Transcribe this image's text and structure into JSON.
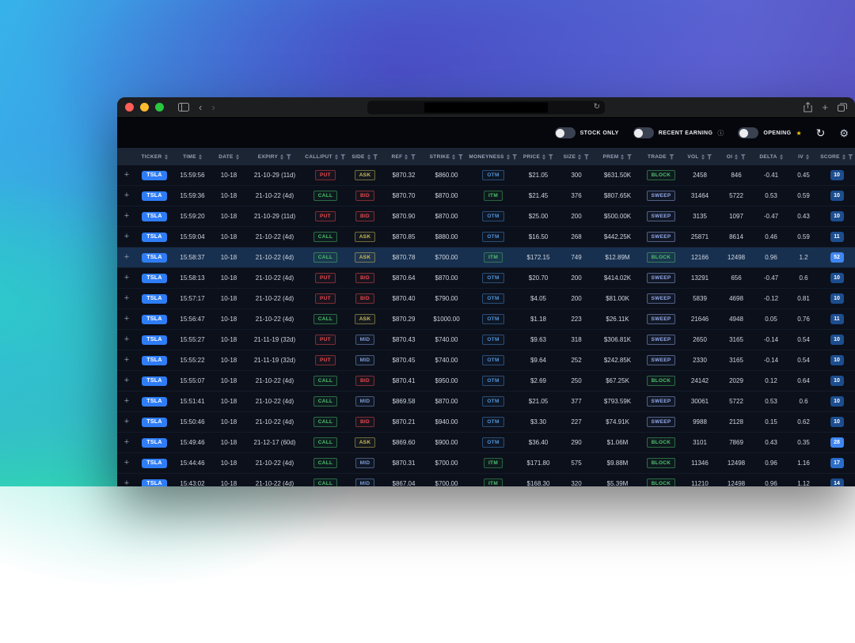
{
  "colors": {
    "accent_blue": "#2f7df6",
    "call_green": "#4cc06a",
    "put_red": "#e5484d",
    "ask_yellow": "#cdbb5a",
    "bid_red": "#e5484d",
    "mid_blue": "#7d9bd8",
    "otm_blue": "#4f93d6",
    "itm_green": "#4cc06a",
    "sweep_blue": "#93a7e8",
    "block_green": "#4cc06a",
    "score_low": "#1c4d8f",
    "score_mid": "#2a6cc9",
    "score_high": "#3f86f2",
    "row_highlight": "#18304f",
    "star_yellow": "#f5c518"
  },
  "icons": {
    "back": "‹",
    "forward": "›",
    "reload": "↻",
    "refresh": "↻",
    "new_tab": "+",
    "info": "ⓘ",
    "star": "★",
    "settings": "⚙",
    "expand": "+"
  },
  "controls": {
    "toggles": [
      {
        "label": "STOCK ONLY",
        "state": "off"
      },
      {
        "label": "RECENT EARNING",
        "state": "off",
        "info": true
      },
      {
        "label": "OPENING",
        "state": "off",
        "star": true
      }
    ]
  },
  "table": {
    "columns": [
      {
        "key": "ticker",
        "label": "TICKER",
        "sort": true,
        "filter": false
      },
      {
        "key": "time",
        "label": "TIME",
        "sort": true,
        "filter": false
      },
      {
        "key": "date",
        "label": "DATE",
        "sort": true,
        "filter": false
      },
      {
        "key": "expiry",
        "label": "EXPIRY",
        "sort": true,
        "filter": true
      },
      {
        "key": "callput",
        "label": "CALL/PUT",
        "sort": true,
        "filter": true
      },
      {
        "key": "side",
        "label": "SIDE",
        "sort": true,
        "filter": true
      },
      {
        "key": "ref",
        "label": "REF",
        "sort": true,
        "filter": true
      },
      {
        "key": "strike",
        "label": "STRIKE",
        "sort": true,
        "filter": true
      },
      {
        "key": "moneyness",
        "label": "MONEYNESS",
        "sort": true,
        "filter": true
      },
      {
        "key": "price",
        "label": "PRICE",
        "sort": true,
        "filter": true
      },
      {
        "key": "size",
        "label": "SIZE",
        "sort": true,
        "filter": true
      },
      {
        "key": "prem",
        "label": "PREM",
        "sort": true,
        "filter": true
      },
      {
        "key": "trade",
        "label": "TRADE",
        "sort": false,
        "filter": true
      },
      {
        "key": "vol",
        "label": "VOL",
        "sort": true,
        "filter": true
      },
      {
        "key": "oi",
        "label": "OI",
        "sort": true,
        "filter": true
      },
      {
        "key": "delta",
        "label": "DELTA",
        "sort": true,
        "filter": false
      },
      {
        "key": "iv",
        "label": "IV",
        "sort": true,
        "filter": false
      },
      {
        "key": "score",
        "label": "SCORE",
        "sort": true,
        "filter": true
      }
    ],
    "rows": [
      {
        "ticker": "TSLA",
        "time": "15:59:56",
        "date": "10-18",
        "expiry": "21-10-29 (11d)",
        "callput": "PUT",
        "side": "ASK",
        "ref": "$870.32",
        "strike": "$860.00",
        "moneyness": "OTM",
        "price": "$21.05",
        "size": "300",
        "prem": "$631.50K",
        "trade": "BLOCK",
        "vol": "2458",
        "oi": "846",
        "delta": "-0.41",
        "iv": "0.45",
        "score": "10",
        "highlighted": false
      },
      {
        "ticker": "TSLA",
        "time": "15:59:36",
        "date": "10-18",
        "expiry": "21-10-22 (4d)",
        "callput": "CALL",
        "side": "BID",
        "ref": "$870.70",
        "strike": "$870.00",
        "moneyness": "ITM",
        "price": "$21.45",
        "size": "376",
        "prem": "$807.65K",
        "trade": "SWEEP",
        "vol": "31464",
        "oi": "5722",
        "delta": "0.53",
        "iv": "0.59",
        "score": "10",
        "highlighted": false
      },
      {
        "ticker": "TSLA",
        "time": "15:59:20",
        "date": "10-18",
        "expiry": "21-10-29 (11d)",
        "callput": "PUT",
        "side": "BID",
        "ref": "$870.90",
        "strike": "$870.00",
        "moneyness": "OTM",
        "price": "$25.00",
        "size": "200",
        "prem": "$500.00K",
        "trade": "SWEEP",
        "vol": "3135",
        "oi": "1097",
        "delta": "-0.47",
        "iv": "0.43",
        "score": "10",
        "highlighted": false
      },
      {
        "ticker": "TSLA",
        "time": "15:59:04",
        "date": "10-18",
        "expiry": "21-10-22 (4d)",
        "callput": "CALL",
        "side": "ASK",
        "ref": "$870.85",
        "strike": "$880.00",
        "moneyness": "OTM",
        "price": "$16.50",
        "size": "268",
        "prem": "$442.25K",
        "trade": "SWEEP",
        "vol": "25871",
        "oi": "8614",
        "delta": "0.46",
        "iv": "0.59",
        "score": "11",
        "highlighted": false
      },
      {
        "ticker": "TSLA",
        "time": "15:58:37",
        "date": "10-18",
        "expiry": "21-10-22 (4d)",
        "callput": "CALL",
        "side": "ASK",
        "ref": "$870.78",
        "strike": "$700.00",
        "moneyness": "ITM",
        "price": "$172.15",
        "size": "749",
        "prem": "$12.89M",
        "trade": "BLOCK",
        "vol": "12166",
        "oi": "12498",
        "delta": "0.96",
        "iv": "1.2",
        "score": "52",
        "highlighted": true
      },
      {
        "ticker": "TSLA",
        "time": "15:58:13",
        "date": "10-18",
        "expiry": "21-10-22 (4d)",
        "callput": "PUT",
        "side": "BID",
        "ref": "$870.64",
        "strike": "$870.00",
        "moneyness": "OTM",
        "price": "$20.70",
        "size": "200",
        "prem": "$414.02K",
        "trade": "SWEEP",
        "vol": "13291",
        "oi": "656",
        "delta": "-0.47",
        "iv": "0.6",
        "score": "10",
        "highlighted": false
      },
      {
        "ticker": "TSLA",
        "time": "15:57:17",
        "date": "10-18",
        "expiry": "21-10-22 (4d)",
        "callput": "PUT",
        "side": "BID",
        "ref": "$870.40",
        "strike": "$790.00",
        "moneyness": "OTM",
        "price": "$4.05",
        "size": "200",
        "prem": "$81.00K",
        "trade": "SWEEP",
        "vol": "5839",
        "oi": "4698",
        "delta": "-0.12",
        "iv": "0.81",
        "score": "10",
        "highlighted": false
      },
      {
        "ticker": "TSLA",
        "time": "15:56:47",
        "date": "10-18",
        "expiry": "21-10-22 (4d)",
        "callput": "CALL",
        "side": "ASK",
        "ref": "$870.29",
        "strike": "$1000.00",
        "moneyness": "OTM",
        "price": "$1.18",
        "size": "223",
        "prem": "$26.11K",
        "trade": "SWEEP",
        "vol": "21646",
        "oi": "4948",
        "delta": "0.05",
        "iv": "0.76",
        "score": "11",
        "highlighted": false
      },
      {
        "ticker": "TSLA",
        "time": "15:55:27",
        "date": "10-18",
        "expiry": "21-11-19 (32d)",
        "callput": "PUT",
        "side": "MID",
        "ref": "$870.43",
        "strike": "$740.00",
        "moneyness": "OTM",
        "price": "$9.63",
        "size": "318",
        "prem": "$306.81K",
        "trade": "SWEEP",
        "vol": "2650",
        "oi": "3165",
        "delta": "-0.14",
        "iv": "0.54",
        "score": "10",
        "highlighted": false
      },
      {
        "ticker": "TSLA",
        "time": "15:55:22",
        "date": "10-18",
        "expiry": "21-11-19 (32d)",
        "callput": "PUT",
        "side": "MID",
        "ref": "$870.45",
        "strike": "$740.00",
        "moneyness": "OTM",
        "price": "$9.64",
        "size": "252",
        "prem": "$242.85K",
        "trade": "SWEEP",
        "vol": "2330",
        "oi": "3165",
        "delta": "-0.14",
        "iv": "0.54",
        "score": "10",
        "highlighted": false
      },
      {
        "ticker": "TSLA",
        "time": "15:55:07",
        "date": "10-18",
        "expiry": "21-10-22 (4d)",
        "callput": "CALL",
        "side": "BID",
        "ref": "$870.41",
        "strike": "$950.00",
        "moneyness": "OTM",
        "price": "$2.69",
        "size": "250",
        "prem": "$67.25K",
        "trade": "BLOCK",
        "vol": "24142",
        "oi": "2029",
        "delta": "0.12",
        "iv": "0.64",
        "score": "10",
        "highlighted": false
      },
      {
        "ticker": "TSLA",
        "time": "15:51:41",
        "date": "10-18",
        "expiry": "21-10-22 (4d)",
        "callput": "CALL",
        "side": "MID",
        "ref": "$869.58",
        "strike": "$870.00",
        "moneyness": "OTM",
        "price": "$21.05",
        "size": "377",
        "prem": "$793.59K",
        "trade": "SWEEP",
        "vol": "30061",
        "oi": "5722",
        "delta": "0.53",
        "iv": "0.6",
        "score": "10",
        "highlighted": false
      },
      {
        "ticker": "TSLA",
        "time": "15:50:46",
        "date": "10-18",
        "expiry": "21-10-22 (4d)",
        "callput": "CALL",
        "side": "BID",
        "ref": "$870.21",
        "strike": "$940.00",
        "moneyness": "OTM",
        "price": "$3.30",
        "size": "227",
        "prem": "$74.91K",
        "trade": "SWEEP",
        "vol": "9988",
        "oi": "2128",
        "delta": "0.15",
        "iv": "0.62",
        "score": "10",
        "highlighted": false
      },
      {
        "ticker": "TSLA",
        "time": "15:49:46",
        "date": "10-18",
        "expiry": "21-12-17 (60d)",
        "callput": "CALL",
        "side": "ASK",
        "ref": "$869.60",
        "strike": "$900.00",
        "moneyness": "OTM",
        "price": "$36.40",
        "size": "290",
        "prem": "$1.06M",
        "trade": "BLOCK",
        "vol": "3101",
        "oi": "7869",
        "delta": "0.43",
        "iv": "0.35",
        "score": "28",
        "highlighted": false
      },
      {
        "ticker": "TSLA",
        "time": "15:44:46",
        "date": "10-18",
        "expiry": "21-10-22 (4d)",
        "callput": "CALL",
        "side": "MID",
        "ref": "$870.31",
        "strike": "$700.00",
        "moneyness": "ITM",
        "price": "$171.80",
        "size": "575",
        "prem": "$9.88M",
        "trade": "BLOCK",
        "vol": "11346",
        "oi": "12498",
        "delta": "0.96",
        "iv": "1.16",
        "score": "17",
        "highlighted": false
      },
      {
        "ticker": "TSLA",
        "time": "15:43:02",
        "date": "10-18",
        "expiry": "21-10-22 (4d)",
        "callput": "CALL",
        "side": "MID",
        "ref": "$867.04",
        "strike": "$700.00",
        "moneyness": "ITM",
        "price": "$168.30",
        "size": "320",
        "prem": "$5.39M",
        "trade": "BLOCK",
        "vol": "11210",
        "oi": "12498",
        "delta": "0.96",
        "iv": "1.12",
        "score": "14",
        "highlighted": false
      }
    ]
  }
}
